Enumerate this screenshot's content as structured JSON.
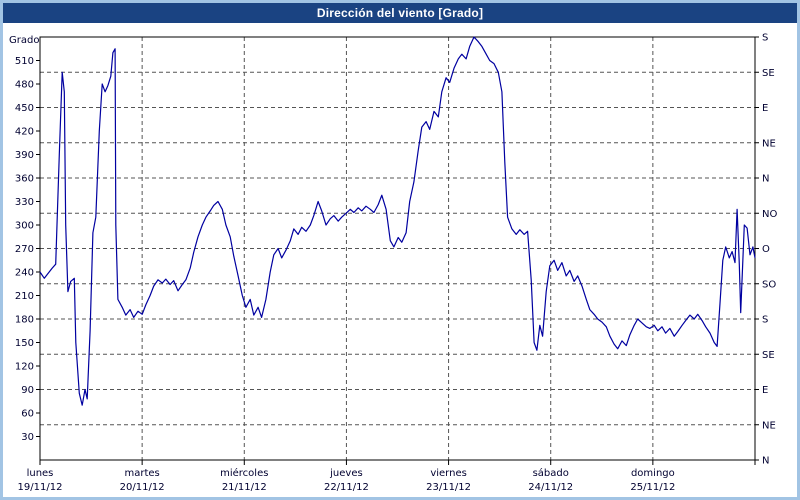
{
  "window": {
    "title": "Dirección del viento [Grado]"
  },
  "colors": {
    "frame_border": "#a2c4e4",
    "titlebar_bg": "#1a4382",
    "titlebar_text": "#ffffff",
    "plot_bg": "#ffffff",
    "grid": "#555555",
    "axis_text": "#000030",
    "series_line": "#0000a0"
  },
  "chart_data": {
    "type": "line",
    "title": "Dirección del viento [Grado]",
    "ylabel": "Grado",
    "ylim": [
      0,
      540
    ],
    "grid": "dashed",
    "legend": "none",
    "y_ticks_left": [
      510,
      480,
      450,
      420,
      390,
      360,
      330,
      300,
      270,
      240,
      210,
      180,
      150,
      120,
      90,
      60,
      30
    ],
    "y_ticks_right": [
      {
        "value": 540,
        "label": "S"
      },
      {
        "value": 495,
        "label": "SE"
      },
      {
        "value": 450,
        "label": "E"
      },
      {
        "value": 405,
        "label": "NE"
      },
      {
        "value": 360,
        "label": "N"
      },
      {
        "value": 315,
        "label": "NO"
      },
      {
        "value": 270,
        "label": "O"
      },
      {
        "value": 225,
        "label": "SO"
      },
      {
        "value": 180,
        "label": "S"
      },
      {
        "value": 135,
        "label": "SE"
      },
      {
        "value": 90,
        "label": "E"
      },
      {
        "value": 45,
        "label": "NE"
      },
      {
        "value": 0,
        "label": "N"
      }
    ],
    "x_days": [
      {
        "name": "lunes",
        "date": "19/11/12"
      },
      {
        "name": "martes",
        "date": "20/11/12"
      },
      {
        "name": "miércoles",
        "date": "21/11/12"
      },
      {
        "name": "jueves",
        "date": "22/11/12"
      },
      {
        "name": "viernes",
        "date": "23/11/12"
      },
      {
        "name": "sábado",
        "date": "24/11/12"
      },
      {
        "name": "domingo",
        "date": "25/11/12"
      }
    ],
    "x_units": "fraction_of_week_0_to_1",
    "series": [
      {
        "name": "Dirección del viento",
        "color": "#0000a0",
        "points": [
          [
            0.0,
            240
          ],
          [
            0.006,
            232
          ],
          [
            0.011,
            238
          ],
          [
            0.017,
            245
          ],
          [
            0.022,
            250
          ],
          [
            0.027,
            390
          ],
          [
            0.031,
            495
          ],
          [
            0.034,
            470
          ],
          [
            0.036,
            300
          ],
          [
            0.039,
            215
          ],
          [
            0.043,
            228
          ],
          [
            0.048,
            232
          ],
          [
            0.05,
            150
          ],
          [
            0.055,
            85
          ],
          [
            0.059,
            70
          ],
          [
            0.063,
            90
          ],
          [
            0.066,
            78
          ],
          [
            0.07,
            165
          ],
          [
            0.074,
            290
          ],
          [
            0.078,
            310
          ],
          [
            0.083,
            420
          ],
          [
            0.087,
            480
          ],
          [
            0.091,
            470
          ],
          [
            0.095,
            478
          ],
          [
            0.099,
            490
          ],
          [
            0.102,
            520
          ],
          [
            0.105,
            525
          ],
          [
            0.106,
            300
          ],
          [
            0.109,
            205
          ],
          [
            0.115,
            195
          ],
          [
            0.12,
            185
          ],
          [
            0.126,
            192
          ],
          [
            0.131,
            182
          ],
          [
            0.137,
            190
          ],
          [
            0.143,
            186
          ],
          [
            0.148,
            198
          ],
          [
            0.154,
            210
          ],
          [
            0.159,
            222
          ],
          [
            0.165,
            230
          ],
          [
            0.171,
            226
          ],
          [
            0.176,
            231
          ],
          [
            0.182,
            224
          ],
          [
            0.187,
            229
          ],
          [
            0.193,
            216
          ],
          [
            0.199,
            224
          ],
          [
            0.204,
            230
          ],
          [
            0.21,
            245
          ],
          [
            0.215,
            265
          ],
          [
            0.221,
            285
          ],
          [
            0.227,
            300
          ],
          [
            0.232,
            310
          ],
          [
            0.238,
            318
          ],
          [
            0.243,
            325
          ],
          [
            0.249,
            330
          ],
          [
            0.255,
            320
          ],
          [
            0.26,
            300
          ],
          [
            0.266,
            285
          ],
          [
            0.271,
            260
          ],
          [
            0.277,
            235
          ],
          [
            0.283,
            210
          ],
          [
            0.288,
            195
          ],
          [
            0.294,
            205
          ],
          [
            0.299,
            185
          ],
          [
            0.305,
            195
          ],
          [
            0.31,
            182
          ],
          [
            0.316,
            205
          ],
          [
            0.322,
            240
          ],
          [
            0.327,
            262
          ],
          [
            0.333,
            270
          ],
          [
            0.338,
            258
          ],
          [
            0.344,
            268
          ],
          [
            0.35,
            280
          ],
          [
            0.355,
            295
          ],
          [
            0.361,
            288
          ],
          [
            0.366,
            297
          ],
          [
            0.372,
            292
          ],
          [
            0.378,
            300
          ],
          [
            0.383,
            312
          ],
          [
            0.389,
            330
          ],
          [
            0.394,
            318
          ],
          [
            0.4,
            300
          ],
          [
            0.406,
            308
          ],
          [
            0.411,
            312
          ],
          [
            0.417,
            305
          ],
          [
            0.422,
            310
          ],
          [
            0.428,
            315
          ],
          [
            0.434,
            320
          ],
          [
            0.439,
            316
          ],
          [
            0.445,
            322
          ],
          [
            0.45,
            318
          ],
          [
            0.456,
            324
          ],
          [
            0.462,
            320
          ],
          [
            0.467,
            316
          ],
          [
            0.473,
            326
          ],
          [
            0.478,
            338
          ],
          [
            0.484,
            320
          ],
          [
            0.49,
            280
          ],
          [
            0.495,
            272
          ],
          [
            0.501,
            284
          ],
          [
            0.506,
            278
          ],
          [
            0.512,
            290
          ],
          [
            0.517,
            330
          ],
          [
            0.523,
            355
          ],
          [
            0.529,
            395
          ],
          [
            0.534,
            425
          ],
          [
            0.54,
            432
          ],
          [
            0.545,
            422
          ],
          [
            0.551,
            445
          ],
          [
            0.557,
            438
          ],
          [
            0.562,
            470
          ],
          [
            0.568,
            488
          ],
          [
            0.573,
            482
          ],
          [
            0.579,
            500
          ],
          [
            0.585,
            512
          ],
          [
            0.59,
            518
          ],
          [
            0.596,
            512
          ],
          [
            0.601,
            528
          ],
          [
            0.607,
            540
          ],
          [
            0.613,
            534
          ],
          [
            0.618,
            528
          ],
          [
            0.624,
            518
          ],
          [
            0.629,
            510
          ],
          [
            0.635,
            506
          ],
          [
            0.641,
            495
          ],
          [
            0.646,
            470
          ],
          [
            0.65,
            380
          ],
          [
            0.654,
            310
          ],
          [
            0.66,
            295
          ],
          [
            0.666,
            288
          ],
          [
            0.671,
            294
          ],
          [
            0.677,
            288
          ],
          [
            0.682,
            292
          ],
          [
            0.687,
            230
          ],
          [
            0.691,
            150
          ],
          [
            0.695,
            140
          ],
          [
            0.699,
            172
          ],
          [
            0.703,
            158
          ],
          [
            0.708,
            215
          ],
          [
            0.713,
            248
          ],
          [
            0.719,
            255
          ],
          [
            0.724,
            242
          ],
          [
            0.73,
            252
          ],
          [
            0.736,
            235
          ],
          [
            0.741,
            242
          ],
          [
            0.747,
            228
          ],
          [
            0.752,
            235
          ],
          [
            0.758,
            222
          ],
          [
            0.764,
            205
          ],
          [
            0.769,
            192
          ],
          [
            0.775,
            186
          ],
          [
            0.78,
            180
          ],
          [
            0.786,
            176
          ],
          [
            0.792,
            170
          ],
          [
            0.797,
            158
          ],
          [
            0.803,
            148
          ],
          [
            0.808,
            142
          ],
          [
            0.814,
            152
          ],
          [
            0.82,
            146
          ],
          [
            0.825,
            160
          ],
          [
            0.831,
            172
          ],
          [
            0.836,
            180
          ],
          [
            0.842,
            175
          ],
          [
            0.848,
            170
          ],
          [
            0.853,
            168
          ],
          [
            0.859,
            172
          ],
          [
            0.864,
            165
          ],
          [
            0.87,
            170
          ],
          [
            0.875,
            162
          ],
          [
            0.881,
            168
          ],
          [
            0.887,
            158
          ],
          [
            0.892,
            164
          ],
          [
            0.898,
            172
          ],
          [
            0.903,
            178
          ],
          [
            0.909,
            185
          ],
          [
            0.915,
            180
          ],
          [
            0.92,
            186
          ],
          [
            0.926,
            178
          ],
          [
            0.931,
            170
          ],
          [
            0.937,
            162
          ],
          [
            0.943,
            150
          ],
          [
            0.947,
            145
          ],
          [
            0.951,
            200
          ],
          [
            0.955,
            255
          ],
          [
            0.959,
            272
          ],
          [
            0.964,
            258
          ],
          [
            0.968,
            266
          ],
          [
            0.972,
            252
          ],
          [
            0.975,
            320
          ],
          [
            0.978,
            250
          ],
          [
            0.98,
            188
          ],
          [
            0.985,
            300
          ],
          [
            0.989,
            296
          ],
          [
            0.993,
            262
          ],
          [
            0.997,
            272
          ],
          [
            1.0,
            258
          ]
        ]
      }
    ]
  }
}
